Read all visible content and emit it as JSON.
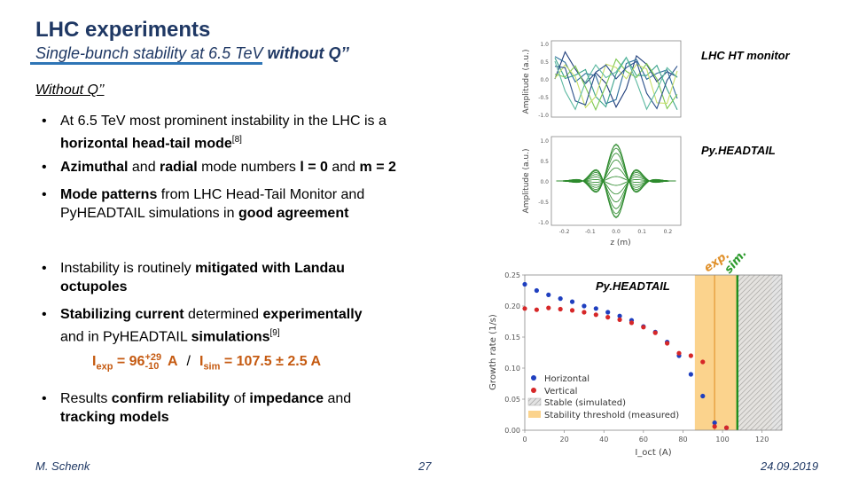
{
  "slide": {
    "title": "LHC experiments",
    "subtitle_pre": "Single-bunch stability at 6.5 TeV ",
    "subtitle_bold": "without Q’’",
    "section_heading": "Without Q’’",
    "bullets": [
      {
        "pre": "At 6.5 TeV most prominent instability in the LHC is a",
        "line2_bold": "horizontal head-tail mode",
        "ref": "[8]"
      },
      {
        "bold1": "Azimuthal",
        "mid1": " and ",
        "bold2": "radial",
        "mid2": " mode numbers ",
        "bold3": "l = 0",
        "mid3": " and ",
        "bold4": "m = 2"
      },
      {
        "bold1": "Mode patterns",
        "mid1": " from LHC Head-Tail Monitor and",
        "line2_pre": "PyHEADTAIL simulations in ",
        "line2_bold": "good agreement"
      },
      {
        "pre": "Instability is routinely ",
        "bold1": "mitigated with Landau",
        "line2_bold": "octupoles"
      },
      {
        "bold1": "Stabilizing current",
        "mid1": " determined ",
        "bold2": "experimentally",
        "line2_pre": "and in PyHEADTAIL ",
        "line2_bold": "simulations",
        "ref": "[9]"
      },
      {
        "pre": "Results ",
        "bold1": "confirm reliability",
        "mid1": " of ",
        "bold2": "impedance",
        "mid2": " and",
        "line2_bold": "tracking models"
      }
    ],
    "formula": {
      "exp_label": "I",
      "exp_sub": "exp",
      "exp_value": " = 96",
      "exp_plus": "+29",
      "exp_minus": "-10",
      "exp_unit": " A",
      "separator": "/",
      "sim_label": "I",
      "sim_sub": "sim",
      "sim_value": " = 107.5 ± 2.5 A"
    },
    "labels": {
      "hT_monitor": "LHC HT monitor",
      "pyheadtail_top": "Py.HEADTAIL",
      "pyheadtail_chart": "Py.HEADTAIL",
      "exp_tag": "exp.",
      "sim_tag": "sim."
    },
    "footer": {
      "author": "M. Schenk",
      "page": "27",
      "date": "24.09.2019"
    }
  },
  "chart_data": [
    {
      "type": "line",
      "title": "",
      "xlabel": "",
      "ylabel": "Amplitude (a.u.)",
      "ylim": [
        -1.0,
        1.0
      ],
      "y_ticks": [
        "1.0",
        "0.5",
        "0.0",
        "-0.5",
        "-1.0"
      ],
      "series_colors": [
        "#1f3d7a",
        "#2c6e9a",
        "#3aa38b",
        "#7ec850",
        "#c9e06a",
        "#2a4f8a",
        "#5bb8a0"
      ]
    },
    {
      "type": "line",
      "title": "",
      "xlabel": "z (m)",
      "ylabel": "Amplitude (a.u.)",
      "xlim": [
        -0.25,
        0.25
      ],
      "ylim": [
        -1.0,
        1.0
      ],
      "x_ticks": [
        "-0.2",
        "-0.1",
        "0.0",
        "0.1",
        "0.2"
      ],
      "y_ticks": [
        "1.0",
        "0.5",
        "0.0",
        "-0.5",
        "-1.0"
      ],
      "color": "#2e8b2e"
    },
    {
      "type": "scatter",
      "title": "",
      "xlabel": "I_oct (A)",
      "ylabel": "Growth rate (1/s)",
      "xlim": [
        0,
        130
      ],
      "ylim": [
        0,
        0.25
      ],
      "x_ticks": [
        0,
        20,
        40,
        60,
        80,
        100,
        120
      ],
      "y_ticks": [
        "0.25",
        "0.20",
        "0.15",
        "0.10",
        "0.05",
        "0.00"
      ],
      "legend_position": "bottom-left",
      "legend": {
        "horizontal": "Horizontal",
        "vertical": "Vertical",
        "stable_sim": "Stable (simulated)",
        "threshold_meas": "Stability threshold (measured)"
      },
      "stable_region": [
        107.5,
        130
      ],
      "measured_band": [
        86,
        125
      ],
      "measured_line": 96,
      "simulated_line": 107.5,
      "series": [
        {
          "name": "Horizontal",
          "color": "#1f3fbf",
          "x": [
            0,
            6,
            12,
            18,
            24,
            30,
            36,
            42,
            48,
            54,
            60,
            66,
            72,
            78,
            84,
            90,
            96,
            102
          ],
          "y": [
            0.235,
            0.225,
            0.218,
            0.212,
            0.207,
            0.2,
            0.196,
            0.19,
            0.184,
            0.177,
            0.167,
            0.158,
            0.142,
            0.12,
            0.09,
            0.055,
            0.012,
            0.004
          ]
        },
        {
          "name": "Vertical",
          "color": "#d62728",
          "x": [
            0,
            6,
            12,
            18,
            24,
            30,
            36,
            42,
            48,
            54,
            60,
            66,
            72,
            78,
            84,
            90,
            96,
            102
          ],
          "y": [
            0.196,
            0.194,
            0.197,
            0.195,
            0.193,
            0.19,
            0.186,
            0.182,
            0.178,
            0.173,
            0.166,
            0.157,
            0.14,
            0.124,
            0.12,
            0.11,
            0.006,
            0.004
          ]
        }
      ]
    }
  ]
}
